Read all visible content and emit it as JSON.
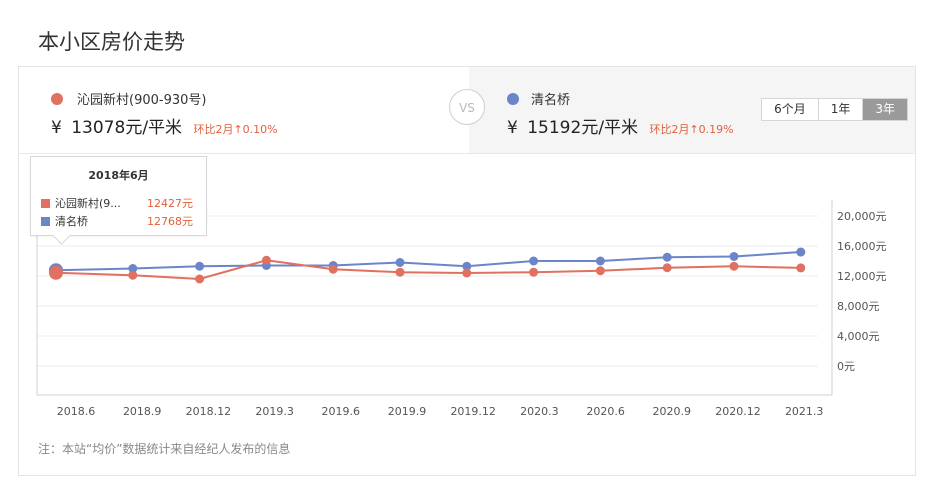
{
  "page": {
    "title": "本小区房价走势"
  },
  "compare": {
    "left": {
      "name": "沁园新村(900-930号)",
      "price_prefix": "¥",
      "price": "13078元/平米",
      "change": "环比2月↑0.10%",
      "color": "#e0705f"
    },
    "vs": "VS",
    "right": {
      "name": "清名桥",
      "price_prefix": "¥",
      "price": "15192元/平米",
      "change": "环比2月↑0.19%",
      "color": "#6b85c8"
    }
  },
  "range": {
    "options": [
      "6个月",
      "1年",
      "3年"
    ],
    "selected": "3年"
  },
  "tooltip": {
    "title": "2018年6月",
    "rows": [
      {
        "name": "沁园新村(9...",
        "value": "12427元"
      },
      {
        "name": "清名桥",
        "value": "12768元"
      }
    ]
  },
  "chart_data": {
    "type": "line",
    "x": [
      "2018.6",
      "2018.9",
      "2018.12",
      "2019.3",
      "2019.6",
      "2019.9",
      "2019.12",
      "2020.3",
      "2020.6",
      "2020.9",
      "2020.12",
      "2021.3"
    ],
    "y_ticks": [
      "20,000元",
      "16,000元",
      "12,000元",
      "8,000元",
      "4,000元",
      "0元"
    ],
    "series": [
      {
        "name": "沁园新村(900-930号)",
        "color": "#e0705f",
        "values": [
          12427,
          12100,
          11600,
          14100,
          12900,
          12500,
          12400,
          12500,
          12700,
          13100,
          13300,
          13078
        ]
      },
      {
        "name": "清名桥",
        "color": "#6b85c8",
        "values": [
          12768,
          13000,
          13300,
          13400,
          13400,
          13800,
          13300,
          14000,
          14000,
          14500,
          14600,
          15192
        ]
      }
    ],
    "highlight_index": 0,
    "grid": true,
    "y_axis_side": "right"
  },
  "note": "注：本站“均价”数据统计来自经纪人发布的信息"
}
